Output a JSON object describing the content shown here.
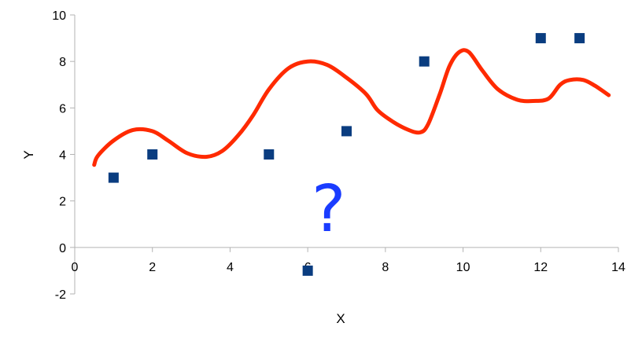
{
  "chart_data": {
    "type": "scatter",
    "title": "",
    "xlabel": "X",
    "ylabel": "Y",
    "xlim": [
      0,
      14
    ],
    "ylim": [
      -2,
      10
    ],
    "xticks": [
      0,
      2,
      4,
      6,
      8,
      10,
      12,
      14
    ],
    "yticks": [
      -2,
      0,
      2,
      4,
      6,
      8,
      10
    ],
    "grid": false,
    "legend": "none",
    "series": [
      {
        "type": "scatter",
        "color": "#0a3d80",
        "marker": "square",
        "points": [
          {
            "x": 1,
            "y": 3
          },
          {
            "x": 2,
            "y": 4
          },
          {
            "x": 5,
            "y": 4
          },
          {
            "x": 6,
            "y": -1
          },
          {
            "x": 7,
            "y": 5
          },
          {
            "x": 9,
            "y": 8
          },
          {
            "x": 12,
            "y": 9
          },
          {
            "x": 13,
            "y": 9
          }
        ]
      },
      {
        "type": "line",
        "style": "hand-drawn curve",
        "color": "#ff2a00",
        "points": [
          {
            "x": 0.5,
            "y": 3.55
          },
          {
            "x": 0.6,
            "y": 3.95
          },
          {
            "x": 1.0,
            "y": 4.6
          },
          {
            "x": 1.5,
            "y": 5.05
          },
          {
            "x": 2.0,
            "y": 5.0
          },
          {
            "x": 2.4,
            "y": 4.6
          },
          {
            "x": 2.9,
            "y": 4.05
          },
          {
            "x": 3.4,
            "y": 3.9
          },
          {
            "x": 3.8,
            "y": 4.15
          },
          {
            "x": 4.2,
            "y": 4.8
          },
          {
            "x": 4.6,
            "y": 5.7
          },
          {
            "x": 5.0,
            "y": 6.8
          },
          {
            "x": 5.5,
            "y": 7.7
          },
          {
            "x": 6.0,
            "y": 8.0
          },
          {
            "x": 6.5,
            "y": 7.85
          },
          {
            "x": 7.0,
            "y": 7.3
          },
          {
            "x": 7.5,
            "y": 6.6
          },
          {
            "x": 7.8,
            "y": 5.9
          },
          {
            "x": 8.2,
            "y": 5.4
          },
          {
            "x": 8.6,
            "y": 5.05
          },
          {
            "x": 8.9,
            "y": 4.95
          },
          {
            "x": 9.1,
            "y": 5.3
          },
          {
            "x": 9.4,
            "y": 6.6
          },
          {
            "x": 9.65,
            "y": 7.8
          },
          {
            "x": 9.9,
            "y": 8.4
          },
          {
            "x": 10.15,
            "y": 8.4
          },
          {
            "x": 10.5,
            "y": 7.6
          },
          {
            "x": 10.9,
            "y": 6.8
          },
          {
            "x": 11.4,
            "y": 6.35
          },
          {
            "x": 11.8,
            "y": 6.3
          },
          {
            "x": 12.2,
            "y": 6.4
          },
          {
            "x": 12.5,
            "y": 7.0
          },
          {
            "x": 12.75,
            "y": 7.2
          },
          {
            "x": 13.1,
            "y": 7.2
          },
          {
            "x": 13.4,
            "y": 6.95
          },
          {
            "x": 13.75,
            "y": 6.55
          }
        ]
      }
    ],
    "annotations": [
      {
        "text": "?",
        "x": 6.6,
        "y": 0.7,
        "color": "#1a3cff",
        "style": "hand-drawn"
      }
    ]
  }
}
